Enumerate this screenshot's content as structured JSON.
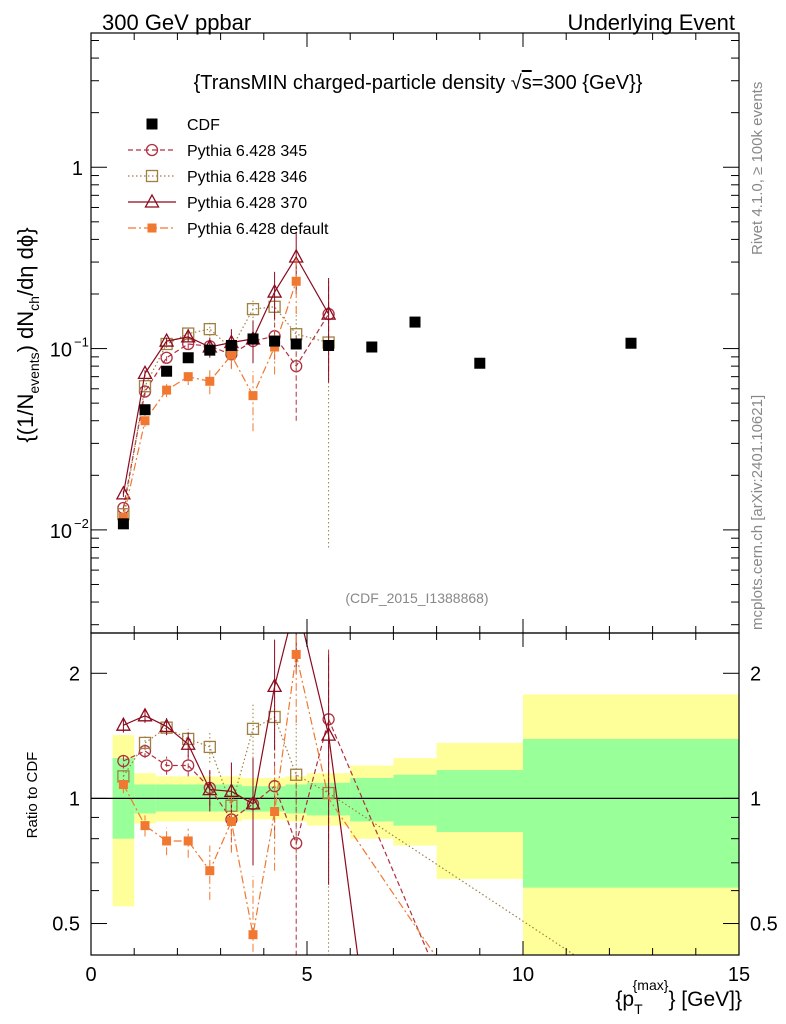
{
  "header": {
    "left": "300 GeV ppbar",
    "right": "Underlying Event"
  },
  "side_labels": {
    "rivet": "Rivet 4.1.0, ≥ 100k events",
    "mcplots": "mcplots.cern.ch [arXiv:2401.10621]"
  },
  "colors": {
    "cdf": "#000000",
    "p345": "#b03040",
    "p346": "#a08040",
    "p370": "#8b0a1e",
    "pdefault": "#f07830",
    "band_inner": "#99ff99",
    "band_outer": "#ffff99"
  },
  "chart_data": {
    "type": "scatter",
    "title_parts": [
      "{TransMIN charged-particle density ",
      "√",
      "s",
      "=300 {GeV}}"
    ],
    "xlabel_parts": [
      "{p",
      "T",
      "{max}",
      "} [GeV]}"
    ],
    "ylabel_parts": [
      "{(1/N",
      "events",
      ") dN",
      "ch",
      "/dη dϕ}"
    ],
    "ratio_ylabel": "Ratio to CDF",
    "analysis_tag": "(CDF_2015_I1388868)",
    "xlim": [
      0,
      15
    ],
    "ylim": [
      0.0027,
      5.5
    ],
    "ratio_ylim": [
      0.42,
      2.5
    ],
    "yscale": "log",
    "x_ticks": [
      "0",
      "5",
      "10",
      "15"
    ],
    "y_tick_labels": [
      {
        "value": 0.01,
        "base": "10",
        "exp": "−2"
      },
      {
        "value": 0.1,
        "base": "10",
        "exp": "−1"
      },
      {
        "value": 1,
        "base": "1",
        "exp": ""
      }
    ],
    "ratio_tick_labels": [
      "0.5",
      "1",
      "2"
    ],
    "legend": [
      {
        "key": "cdf",
        "label": "CDF"
      },
      {
        "key": "p345",
        "label": "Pythia 6.428 345"
      },
      {
        "key": "p346",
        "label": "Pythia 6.428 346"
      },
      {
        "key": "p370",
        "label": "Pythia 6.428 370"
      },
      {
        "key": "pdefault",
        "label": "Pythia 6.428 default"
      }
    ],
    "cdf": {
      "x": [
        0.75,
        1.25,
        1.75,
        2.25,
        2.75,
        3.25,
        3.75,
        4.25,
        4.75,
        5.5,
        6.5,
        7.5,
        9.0,
        12.5
      ],
      "y": [
        0.0108,
        0.046,
        0.075,
        0.089,
        0.098,
        0.104,
        0.113,
        0.11,
        0.106,
        0.104,
        0.102,
        0.14,
        0.083,
        0.107
      ]
    },
    "band_bins": [
      {
        "x0": 0.5,
        "x1": 1.0,
        "inner": [
          0.8,
          1.25
        ],
        "outer": [
          0.55,
          1.42
        ]
      },
      {
        "x0": 1.0,
        "x1": 1.5,
        "inner": [
          0.92,
          1.08
        ],
        "outer": [
          0.87,
          1.15
        ]
      },
      {
        "x0": 1.5,
        "x1": 2.5,
        "inner": [
          0.93,
          1.08
        ],
        "outer": [
          0.88,
          1.13
        ]
      },
      {
        "x0": 2.5,
        "x1": 3.5,
        "inner": [
          0.93,
          1.08
        ],
        "outer": [
          0.88,
          1.13
        ]
      },
      {
        "x0": 3.5,
        "x1": 4.5,
        "inner": [
          0.93,
          1.07
        ],
        "outer": [
          0.89,
          1.12
        ]
      },
      {
        "x0": 4.5,
        "x1": 5.0,
        "inner": [
          0.92,
          1.08
        ],
        "outer": [
          0.88,
          1.13
        ]
      },
      {
        "x0": 5.0,
        "x1": 6.0,
        "inner": [
          0.91,
          1.09
        ],
        "outer": [
          0.86,
          1.15
        ]
      },
      {
        "x0": 6.0,
        "x1": 7.0,
        "inner": [
          0.88,
          1.12
        ],
        "outer": [
          0.8,
          1.2
        ]
      },
      {
        "x0": 7.0,
        "x1": 8.0,
        "inner": [
          0.86,
          1.14
        ],
        "outer": [
          0.77,
          1.25
        ]
      },
      {
        "x0": 8.0,
        "x1": 10.0,
        "inner": [
          0.83,
          1.17
        ],
        "outer": [
          0.64,
          1.36
        ]
      },
      {
        "x0": 10.0,
        "x1": 15.0,
        "inner": [
          0.61,
          1.39
        ],
        "outer": [
          0.3,
          1.78
        ]
      }
    ],
    "series": [
      {
        "key": "p345",
        "name": "Pythia 6.428 345",
        "marker": "circle",
        "dash": "5,3",
        "x": [
          0.75,
          1.25,
          1.75,
          2.25,
          2.75,
          3.25,
          3.75,
          4.25,
          4.75,
          5.5
        ],
        "y": [
          0.0132,
          0.058,
          0.089,
          0.106,
          0.103,
          0.093,
          0.11,
          0.117,
          0.08,
          0.155
        ],
        "err": [
          0.0006,
          0.003,
          0.004,
          0.006,
          0.01,
          0.015,
          0.022,
          0.03,
          0.04,
          0.08
        ],
        "ratio": [
          1.23,
          1.3,
          1.2,
          1.2,
          1.06,
          0.89,
          0.97,
          1.07,
          0.78,
          1.55
        ],
        "ratio_err": [
          0.05,
          0.05,
          0.06,
          0.07,
          0.1,
          0.14,
          0.2,
          0.27,
          0.38,
          0.75
        ],
        "ratio_tail": [
          [
            5.5,
            1.55
          ],
          [
            8.0,
            0.38
          ]
        ]
      },
      {
        "key": "p346",
        "name": "Pythia 6.428 346",
        "marker": "square",
        "dash": "1.5,2.5",
        "x": [
          0.75,
          1.25,
          1.75,
          2.25,
          2.75,
          3.25,
          3.75,
          4.25,
          4.75,
          5.5
        ],
        "y": [
          0.0122,
          0.062,
          0.106,
          0.121,
          0.128,
          0.1,
          0.165,
          0.17,
          0.12,
          0.108
        ],
        "err": [
          0.0006,
          0.003,
          0.005,
          0.007,
          0.011,
          0.016,
          0.025,
          0.035,
          0.05,
          0.1
        ],
        "ratio": [
          1.13,
          1.36,
          1.48,
          1.39,
          1.33,
          0.96,
          1.47,
          1.57,
          1.14,
          1.03
        ],
        "ratio_err": [
          0.05,
          0.05,
          0.06,
          0.08,
          0.11,
          0.16,
          0.22,
          0.32,
          0.45,
          0.9
        ],
        "ratio_tail": [
          [
            5.5,
            1.03
          ],
          [
            11.5,
            0.4
          ]
        ]
      },
      {
        "key": "p370",
        "name": "Pythia 6.428 370",
        "marker": "triangle",
        "dash": "",
        "x": [
          0.75,
          1.25,
          1.75,
          2.25,
          2.75,
          3.25,
          3.75,
          4.25,
          4.75,
          5.5
        ],
        "y": [
          0.0158,
          0.073,
          0.11,
          0.116,
          0.102,
          0.108,
          0.113,
          0.205,
          0.32,
          0.155
        ],
        "err": [
          0.0006,
          0.003,
          0.005,
          0.008,
          0.013,
          0.02,
          0.03,
          0.06,
          0.12,
          0.09
        ],
        "ratio": [
          1.5,
          1.58,
          1.49,
          1.35,
          1.05,
          1.04,
          0.97,
          1.86,
          3.0,
          1.42
        ],
        "ratio_err": [
          0.06,
          0.06,
          0.07,
          0.09,
          0.12,
          0.18,
          0.28,
          0.55,
          1.0,
          0.8
        ],
        "ratio_tail": [
          [
            5.5,
            1.42
          ],
          [
            6.2,
            0.4
          ]
        ]
      },
      {
        "key": "pdefault",
        "name": "Pythia 6.428 default",
        "marker": "fsquare",
        "dash": "8,3,2,3",
        "x": [
          0.75,
          1.25,
          1.75,
          2.25,
          2.75,
          3.25,
          3.75,
          4.25,
          4.75
        ],
        "y": [
          0.0117,
          0.04,
          0.059,
          0.07,
          0.066,
          0.092,
          0.055,
          0.102,
          0.235
        ],
        "err": [
          0.0006,
          0.003,
          0.005,
          0.007,
          0.01,
          0.015,
          0.02,
          0.03,
          0.08
        ],
        "ratio": [
          1.08,
          0.86,
          0.79,
          0.79,
          0.67,
          0.88,
          0.47,
          0.93,
          2.22
        ],
        "ratio_err": [
          0.05,
          0.05,
          0.06,
          0.07,
          0.1,
          0.14,
          0.18,
          0.26,
          0.7
        ],
        "ratio_tail": [
          [
            4.75,
            2.22
          ],
          [
            5.5,
            1.0
          ],
          [
            8.1,
            0.4
          ]
        ]
      }
    ]
  }
}
